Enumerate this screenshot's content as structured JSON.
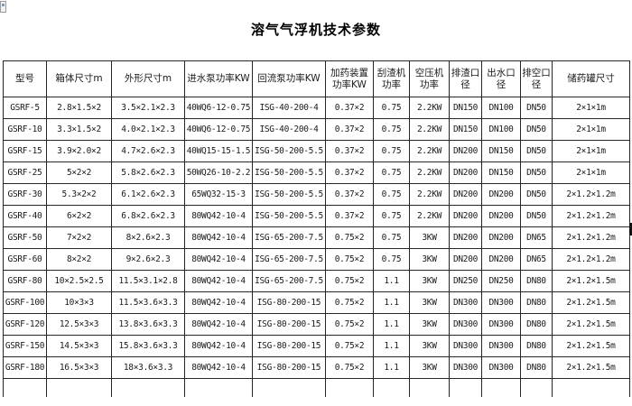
{
  "page": {
    "title": "溶气气浮机技术参数"
  },
  "icons": {
    "top_left": "broken-image-placeholder-fragment"
  },
  "colors": {
    "border": "#262626",
    "text": "#1a1a1a",
    "background": "#ffffff",
    "artifact": "#111111"
  },
  "table": {
    "columns": [
      "型号",
      "箱体尺寸m",
      "外形尺寸m",
      "进水泵功率KW",
      "回流泵功率KW",
      "加药装置功率KW",
      "刮渣机功率",
      "空压机功率",
      "排渣口径",
      "出水口径",
      "排空口径",
      "储药罐尺寸"
    ],
    "rows": [
      [
        "GSRF-5",
        "2.8×1.5×2",
        "3.5×2.1×2.3",
        "40WQ6-12-0.75",
        "ISG-40-200-4",
        "0.37×2",
        "0.75",
        "2.2KW",
        "DN150",
        "DN100",
        "DN50",
        "2×1×1m"
      ],
      [
        "GSRF-10",
        "3.3×1.5×2",
        "4.0×2.1×2.3",
        "40WQ6-12-0.75",
        "ISG-40-200-4",
        "0.37×2",
        "0.75",
        "2.2KW",
        "DN150",
        "DN100",
        "DN50",
        "2×1×1m"
      ],
      [
        "GSRF-15",
        "3.9×2.0×2",
        "4.7×2.6×2.3",
        "40WQ15-15-1.5",
        "ISG-50-200-5.5",
        "0.37×2",
        "0.75",
        "2.2KW",
        "DN200",
        "DN150",
        "DN50",
        "2×1×1m"
      ],
      [
        "GSRF-25",
        "5×2×2",
        "5.8×2.6×2.3",
        "50WQ26-10-2.2",
        "ISG-50-200-5.5",
        "0.37×2",
        "0.75",
        "2.2KW",
        "DN200",
        "DN150",
        "DN50",
        "2×1×1m"
      ],
      [
        "GSRF-30",
        "5.3×2×2",
        "6.1×2.6×2.3",
        "65WQ32-15-3",
        "ISG-50-200-5.5",
        "0.37×2",
        "0.75",
        "2.2KW",
        "DN200",
        "DN200",
        "DN50",
        "2×1.2×1.2m"
      ],
      [
        "GSRF-40",
        "6×2×2",
        "6.8×2.6×2.3",
        "80WQ42-10-4",
        "ISG-50-200-5.5",
        "0.37×2",
        "0.75",
        "2.2KW",
        "DN200",
        "DN200",
        "DN50",
        "2×1.2×1.2m"
      ],
      [
        "GSRF-50",
        "7×2×2",
        "8×2.6×2.3",
        "80WQ42-10-4",
        "ISG-65-200-7.5",
        "0.75×2",
        "0.75",
        "3KW",
        "DN200",
        "DN200",
        "DN65",
        "2×1.2×1.2m"
      ],
      [
        "GSRF-60",
        "8×2×2",
        "9×2.6×2.3",
        "80WQ42-10-4",
        "ISG-65-200-7.5",
        "0.75×2",
        "0.75",
        "3KW",
        "DN200",
        "DN200",
        "DN65",
        "2×1.2×1.2m"
      ],
      [
        "GSRF-80",
        "10×2.5×2.5",
        "11.5×3.1×2.8",
        "80WQ42-10-4",
        "ISG-65-200-7.5",
        "0.75×2",
        "1.1",
        "3KW",
        "DN250",
        "DN250",
        "DN80",
        "2×1.2×1.5m"
      ],
      [
        "GSRF-100",
        "10×3×3",
        "11.5×3.6×3.3",
        "80WQ42-10-4",
        "ISG-80-200-15",
        "0.75×2",
        "1.1",
        "3KW",
        "DN300",
        "DN300",
        "DN80",
        "2×1.2×1.5m"
      ],
      [
        "GSRF-120",
        "12.5×3×3",
        "13.8×3.6×3.3",
        "80WQ42-10-4",
        "ISG-80-200-15",
        "0.75×2",
        "1.1",
        "3KW",
        "DN300",
        "DN300",
        "DN80",
        "2×1.2×1.5m"
      ],
      [
        "GSRF-150",
        "14.5×3×3",
        "15.8×3.6×3.3",
        "80WQ42-10-4",
        "ISG-80-200-15",
        "0.75×2",
        "1.1",
        "3KW",
        "DN300",
        "DN300",
        "DN80",
        "2×1.2×1.5m"
      ],
      [
        "GSRF-180",
        "16.5×3×3",
        "18×3.6×3.3",
        "80WQ42-10-4",
        "ISG-80-200-15",
        "0.75×2",
        "1.1",
        "3KW",
        "DN300",
        "DN300",
        "DN80",
        "2×1.2×1.5m"
      ]
    ]
  }
}
